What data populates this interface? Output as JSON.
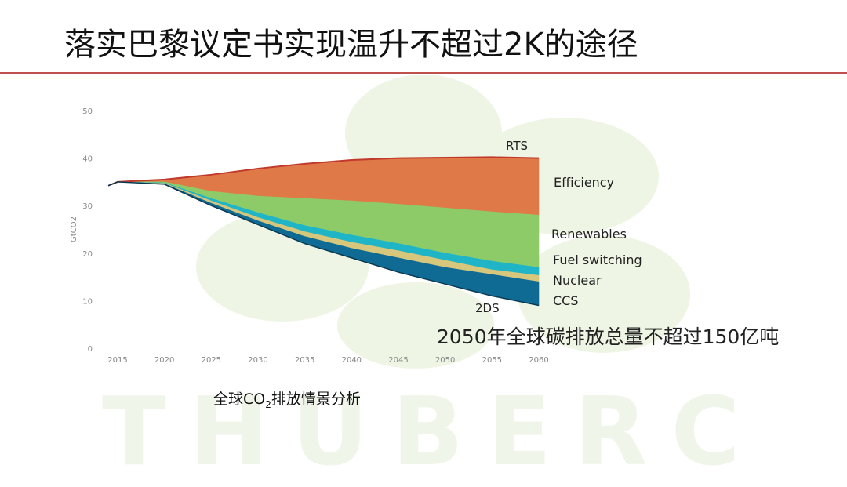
{
  "slide": {
    "title": "落实巴黎议定书实现温升不超过2K的途径",
    "note": "2050年全球碳排放总量不超过150亿吨",
    "caption_pre": "全球CO",
    "caption_sub": "2",
    "caption_post": "排放情景分析",
    "watermark_text": "THUBERC"
  },
  "chart_data": {
    "type": "area",
    "ylabel": "GtCO2",
    "xlim": [
      2013,
      2061
    ],
    "ylim": [
      0,
      50
    ],
    "y_ticks": [
      0,
      10,
      20,
      30,
      40,
      50
    ],
    "x_ticks": [
      2015,
      2020,
      2025,
      2030,
      2035,
      2040,
      2045,
      2050,
      2055,
      2060
    ],
    "grid": false,
    "x": [
      2014,
      2015,
      2020,
      2025,
      2030,
      2035,
      2040,
      2045,
      2050,
      2055,
      2060
    ],
    "boundaries": {
      "RTS": [
        34.2,
        35.0,
        35.5,
        36.5,
        37.8,
        38.8,
        39.6,
        40.0,
        40.1,
        40.2,
        40.0
      ],
      "efficiency_base": [
        34.2,
        35.0,
        35.0,
        33.0,
        32.0,
        31.5,
        31.0,
        30.3,
        29.5,
        28.7,
        28.0
      ],
      "renewables_base": [
        34.2,
        35.0,
        34.8,
        31.5,
        28.5,
        25.8,
        23.8,
        22.0,
        20.0,
        18.3,
        17.0
      ],
      "fuel_switching_base": [
        34.2,
        35.0,
        34.7,
        31.0,
        27.5,
        24.5,
        22.3,
        20.5,
        18.5,
        16.5,
        15.3
      ],
      "nuclear_base": [
        34.2,
        35.0,
        34.6,
        30.5,
        26.8,
        23.5,
        21.0,
        19.0,
        17.0,
        15.5,
        14.0
      ],
      "2DS": [
        34.2,
        35.0,
        34.5,
        30.0,
        26.0,
        22.0,
        19.0,
        16.0,
        13.5,
        11.0,
        9.0
      ]
    },
    "series": [
      {
        "name": "Efficiency",
        "color": "#df7a48"
      },
      {
        "name": "Renewables",
        "color": "#8dcb69"
      },
      {
        "name": "Fuel switching",
        "color": "#1fb5c6"
      },
      {
        "name": "Nuclear",
        "color": "#d7c77c"
      },
      {
        "name": "CCS",
        "color": "#0f6b93"
      }
    ],
    "line_labels": {
      "top": "RTS",
      "bottom": "2DS"
    },
    "rts_line_color": "#c0392b"
  }
}
